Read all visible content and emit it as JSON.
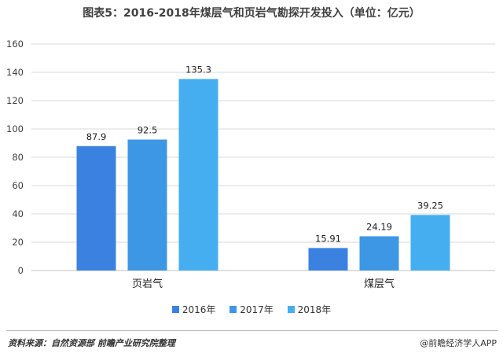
{
  "title": "图表5：2016-2018年煤层气和页岩气勘探开发投入（单位：亿元）",
  "chart_data": {
    "type": "bar",
    "categories": [
      "页岩气",
      "煤层气"
    ],
    "series": [
      {
        "name": "2016年",
        "values": [
          87.9,
          15.91
        ],
        "labels": [
          "87.9",
          "15.91"
        ],
        "color": "#3b82e0"
      },
      {
        "name": "2017年",
        "values": [
          92.5,
          24.19
        ],
        "labels": [
          "92.5",
          "24.19"
        ],
        "color": "#3e97e4"
      },
      {
        "name": "2018年",
        "values": [
          135.3,
          39.25
        ],
        "labels": [
          "135.3",
          "39.25"
        ],
        "color": "#45aef0"
      }
    ],
    "ylim": [
      0,
      160
    ],
    "yticks": [
      "0",
      "20",
      "40",
      "60",
      "80",
      "100",
      "120",
      "140",
      "160"
    ],
    "grid": true,
    "legend": "bottom"
  },
  "footer": {
    "source": "资料来源：自然资源部 前瞻产业研究院整理",
    "credit": "@前瞻经济学人APP"
  }
}
